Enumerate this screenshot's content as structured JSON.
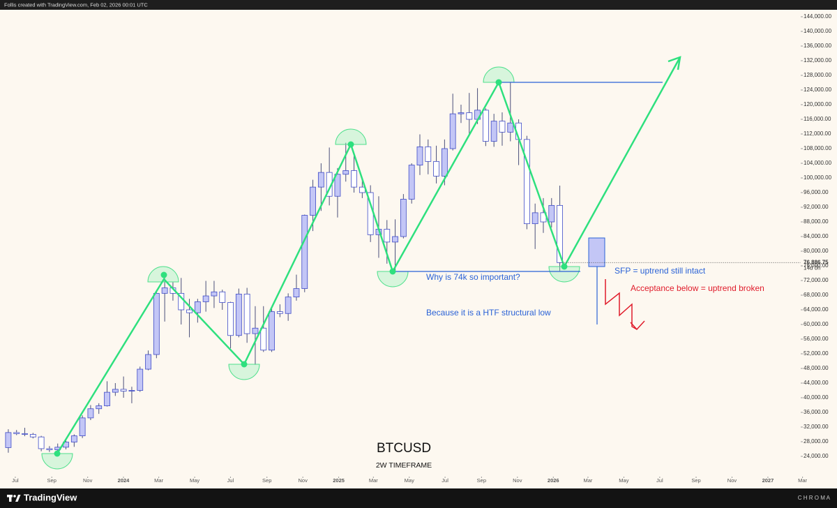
{
  "header": {
    "text": "Follis created with TradingView.com, Feb 02, 2026 00:01 UTC"
  },
  "footer": {
    "brand": "TradingView",
    "watermark": "C H R O M A"
  },
  "chart_data": {
    "type": "candlestick",
    "title": "BTCUSD",
    "subtitle": "2W TIMEFRAME",
    "x": [
      -0.85,
      0.15,
      1.15,
      2.15,
      3.15,
      4.15,
      5.15,
      6.15,
      7.15,
      8.15,
      9.15,
      10.15,
      11.15,
      12.15,
      13.15,
      14.15,
      15.15,
      16.15,
      17.15,
      18.15,
      19.15,
      20.15,
      21.15,
      22.15,
      23.15,
      24.15,
      25.15,
      26.15,
      27.15,
      28.15,
      29.15,
      30.15,
      31.15,
      32.15,
      33.15,
      34.15,
      35.15,
      36.15,
      37.15,
      38.15,
      39.15,
      40.15,
      41.15,
      42.15,
      43.15,
      44.15,
      45.15,
      46.15,
      47.15,
      48.15,
      49.15,
      50.15,
      51.15,
      52.15,
      53.15,
      54.15,
      55.15,
      56.15,
      57.15,
      58.15,
      59.15,
      60.15,
      61.15,
      62.15,
      63.15,
      64.15,
      65.15,
      66.15
    ],
    "open": [
      26400,
      30500,
      30200,
      30000,
      29300,
      26100,
      25800,
      26500,
      27900,
      29600,
      34500,
      37000,
      37800,
      41500,
      42300,
      41800,
      42000,
      47800,
      51800,
      68500,
      70000,
      68500,
      64000,
      63200,
      66200,
      67800,
      68900,
      66000,
      57000,
      68300,
      57500,
      59000,
      53000,
      63500,
      63000,
      67500,
      69800,
      89800,
      97500,
      101500,
      95000,
      101000,
      102000,
      97500,
      96000,
      84500,
      86000,
      82500,
      84000,
      94200,
      103500,
      108500,
      104500,
      100500,
      108000,
      117500,
      117800,
      116000,
      118500,
      110000,
      115500,
      112500,
      115000,
      110500,
      87500,
      90500,
      88000,
      92500
    ],
    "high": [
      31400,
      31200,
      31800,
      30400,
      29600,
      26800,
      27500,
      28600,
      30000,
      35200,
      38000,
      38500,
      44500,
      44000,
      45800,
      43000,
      48500,
      52900,
      69200,
      73800,
      71500,
      72700,
      67000,
      67000,
      71900,
      71900,
      69500,
      66200,
      69800,
      70000,
      65000,
      65000,
      64500,
      65500,
      68500,
      73600,
      90000,
      99500,
      104000,
      108300,
      102700,
      109600,
      106500,
      100000,
      98000,
      95000,
      88500,
      88700,
      95600,
      104000,
      111900,
      110500,
      108800,
      110500,
      123000,
      120000,
      123200,
      124500,
      119000,
      117500,
      117900,
      126200,
      116000,
      111500,
      93000,
      94500,
      94500,
      97900
    ],
    "low": [
      25000,
      29800,
      29500,
      28900,
      25400,
      25200,
      24900,
      25900,
      26600,
      29000,
      33900,
      35600,
      37600,
      40500,
      40000,
      38500,
      41600,
      47500,
      50800,
      60800,
      66500,
      60000,
      56500,
      60500,
      63500,
      64500,
      64000,
      53500,
      56500,
      55000,
      49000,
      52500,
      52500,
      62000,
      61000,
      66500,
      68800,
      85500,
      91000,
      92500,
      89200,
      99000,
      96000,
      94500,
      82500,
      78200,
      76600,
      74600,
      83500,
      93000,
      100800,
      101000,
      98500,
      98000,
      107500,
      115000,
      112000,
      114700,
      108700,
      108500,
      108800,
      110000,
      103500,
      86000,
      80600,
      85000,
      86500,
      74600
    ],
    "close": [
      30500,
      30200,
      30000,
      29300,
      26100,
      25800,
      26500,
      27900,
      29600,
      34500,
      37000,
      37800,
      41500,
      42300,
      41800,
      42000,
      47800,
      51800,
      68500,
      70000,
      68500,
      64000,
      63200,
      66200,
      67800,
      68900,
      66000,
      57000,
      68300,
      57500,
      59000,
      53000,
      63500,
      63000,
      67500,
      69800,
      89800,
      97500,
      101500,
      95000,
      101000,
      102000,
      97500,
      96000,
      84500,
      86000,
      82500,
      84000,
      94200,
      103500,
      108500,
      104500,
      100500,
      108000,
      117500,
      117800,
      116000,
      118500,
      110000,
      115500,
      112500,
      115000,
      110500,
      87500,
      90500,
      88000,
      92500,
      76886.75
    ],
    "up_color": "#c3c6f6",
    "down_color": "#ffffff",
    "border_color": "#3f4bc7",
    "wick_color": "#4a4f7a",
    "xlim": [
      -1.86,
      95.42
    ],
    "xticks": [
      {
        "value": 0,
        "label": "Jul"
      },
      {
        "value": 4.43,
        "label": "Sep"
      },
      {
        "value": 8.79,
        "label": "Nov"
      },
      {
        "value": 13.14,
        "label": "2024"
      },
      {
        "value": 17.43,
        "label": "Mar"
      },
      {
        "value": 21.79,
        "label": "May"
      },
      {
        "value": 26.14,
        "label": "Jul"
      },
      {
        "value": 30.57,
        "label": "Sep"
      },
      {
        "value": 34.93,
        "label": "Nov"
      },
      {
        "value": 39.29,
        "label": "2025"
      },
      {
        "value": 43.5,
        "label": "Mar"
      },
      {
        "value": 47.86,
        "label": "May"
      },
      {
        "value": 52.21,
        "label": "Jul"
      },
      {
        "value": 56.64,
        "label": "Sep"
      },
      {
        "value": 61,
        "label": "Nov"
      },
      {
        "value": 65.36,
        "label": "2026"
      },
      {
        "value": 69.57,
        "label": "Mar"
      },
      {
        "value": 73.93,
        "label": "May"
      },
      {
        "value": 78.29,
        "label": "Jul"
      },
      {
        "value": 82.71,
        "label": "Sep"
      },
      {
        "value": 87.07,
        "label": "Nov"
      },
      {
        "value": 91.43,
        "label": "2027"
      },
      {
        "value": 95.64,
        "label": "Mar"
      }
    ],
    "ylim": [
      18476,
      145905
    ],
    "yticks": [
      {
        "value": 24000,
        "label": "24,000.00"
      },
      {
        "value": 28000,
        "label": "28,000.00"
      },
      {
        "value": 32000,
        "label": "32,000.00"
      },
      {
        "value": 36000,
        "label": "36,000.00"
      },
      {
        "value": 40000,
        "label": "40,000.00"
      },
      {
        "value": 44000,
        "label": "44,000.00"
      },
      {
        "value": 48000,
        "label": "48,000.00"
      },
      {
        "value": 52000,
        "label": "52,000.00"
      },
      {
        "value": 56000,
        "label": "56,000.00"
      },
      {
        "value": 60000,
        "label": "60,000.00"
      },
      {
        "value": 64000,
        "label": "64,000.00"
      },
      {
        "value": 68000,
        "label": "68,000.00"
      },
      {
        "value": 72000,
        "label": "72,000.00"
      },
      {
        "value": 76000,
        "label": "76,000.00"
      },
      {
        "value": 80000,
        "label": "80,000.00"
      },
      {
        "value": 84000,
        "label": "84,000.00"
      },
      {
        "value": 88000,
        "label": "88,000.00"
      },
      {
        "value": 92000,
        "label": "92,000.00"
      },
      {
        "value": 96000,
        "label": "96,000.00"
      },
      {
        "value": 100000,
        "label": "100,000.00"
      },
      {
        "value": 104000,
        "label": "104,000.00"
      },
      {
        "value": 108000,
        "label": "108,000.00"
      },
      {
        "value": 112000,
        "label": "112,000.00"
      },
      {
        "value": 116000,
        "label": "116,000.00"
      },
      {
        "value": 120000,
        "label": "120,000.00"
      },
      {
        "value": 124000,
        "label": "124,000.00"
      },
      {
        "value": 128000,
        "label": "128,000.00"
      },
      {
        "value": 132000,
        "label": "132,000.00"
      },
      {
        "value": 136000,
        "label": "136,000.00"
      },
      {
        "value": 140000,
        "label": "140,000.00"
      },
      {
        "value": 144000,
        "label": "144,000.00"
      }
    ],
    "last_price": {
      "value": 76886.75,
      "label": "76,886.75"
    },
    "countdown": "14d 0h",
    "annotations": [
      "Why is 74k so important?",
      "Because it is a HTF structural low",
      "SFP = uptrend still intact",
      "Acceptance below = uptrend broken"
    ]
  }
}
